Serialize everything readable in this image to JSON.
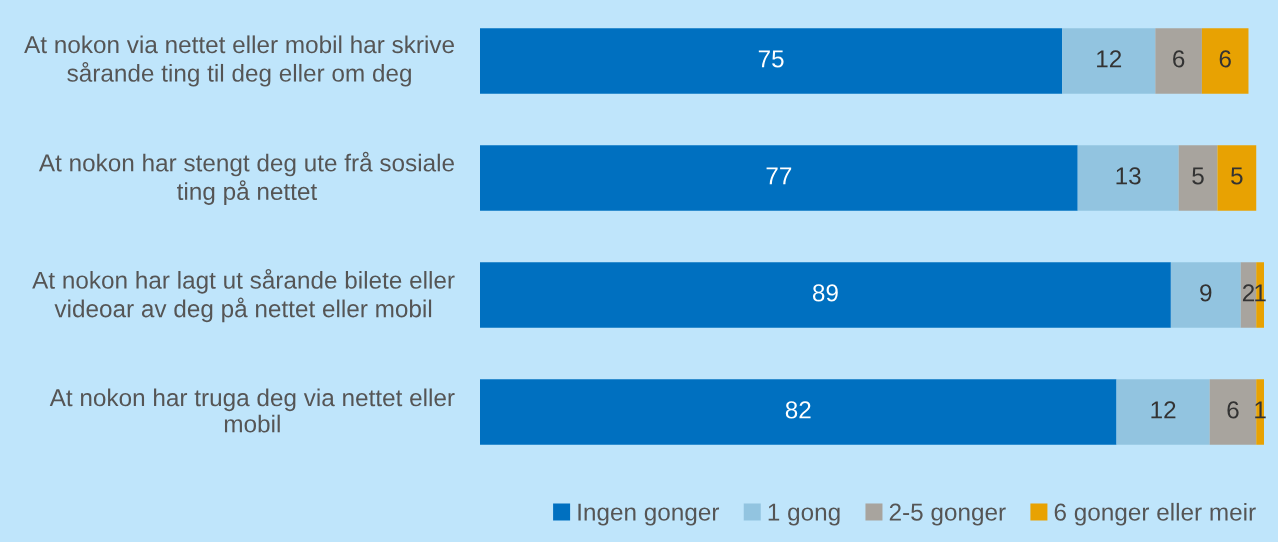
{
  "chart_data": {
    "type": "bar",
    "orientation": "horizontal",
    "stacked": true,
    "data_labels": true,
    "legend": "bottom right",
    "categories": [
      "At nokon via nettet eller mobil har skrive sårande ting til deg eller om deg",
      "At nokon har stengt deg ute frå sosiale ting på nettet",
      "At nokon har lagt ut sårande bilete eller videoar av deg på nettet eller mobil",
      "At nokon har truga deg via nettet eller mobil"
    ],
    "series": [
      {
        "name": "Ingen gonger",
        "color": "#0070c0",
        "values": [
          75,
          77,
          89,
          82
        ]
      },
      {
        "name": "1 gong",
        "color": "#92c4e0",
        "values": [
          12,
          13,
          9,
          12
        ]
      },
      {
        "name": "2-5 gonger",
        "color": "#a8a49e",
        "values": [
          6,
          5,
          2,
          6
        ]
      },
      {
        "name": "6 gonger eller meir",
        "color": "#e8a202",
        "values": [
          6,
          5,
          1,
          1
        ]
      }
    ]
  }
}
